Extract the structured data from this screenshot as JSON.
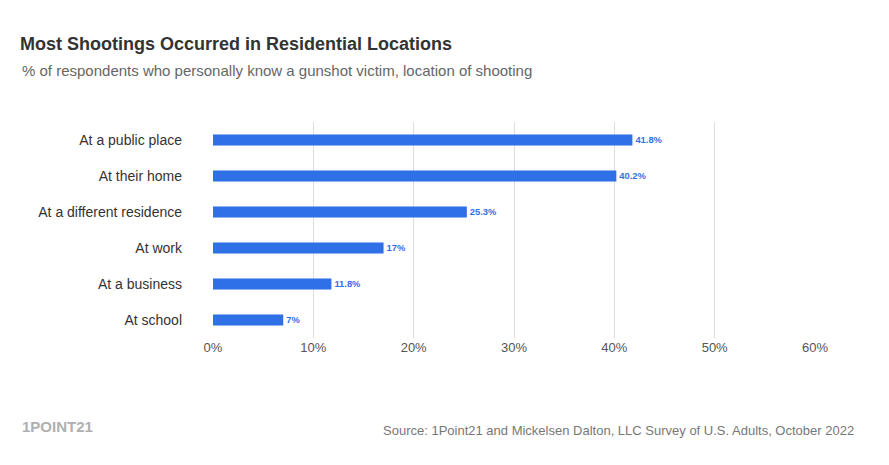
{
  "chart_data": {
    "type": "bar",
    "orientation": "horizontal",
    "title": "Most Shootings Occurred in Residential Locations",
    "subtitle": "% of respondents who personally know a gunshot victim, location of shooting",
    "categories": [
      "At a public place",
      "At their home",
      "At a different residence",
      "At work",
      "At a business",
      "At school"
    ],
    "values": [
      41.8,
      40.2,
      25.3,
      17,
      11.8,
      7
    ],
    "value_labels": [
      "41.8%",
      "40.2%",
      "25.3%",
      "17%",
      "11.8%",
      "7%"
    ],
    "data_labels": true,
    "color": "#2f6fe8",
    "xlim": [
      0,
      60
    ],
    "xticks": [
      {
        "value": 0,
        "label": "0%"
      },
      {
        "value": 10,
        "label": "10%"
      },
      {
        "value": 20,
        "label": "20%"
      },
      {
        "value": 30,
        "label": "30%"
      },
      {
        "value": 40,
        "label": "40%"
      },
      {
        "value": 50,
        "label": "50%"
      },
      {
        "value": 60,
        "label": "60%"
      }
    ],
    "grid": true,
    "source": "Source: 1Point21 and Mickelsen Dalton, LLC Survey of U.S. Adults, October 2022",
    "logo": "1POINT21"
  }
}
